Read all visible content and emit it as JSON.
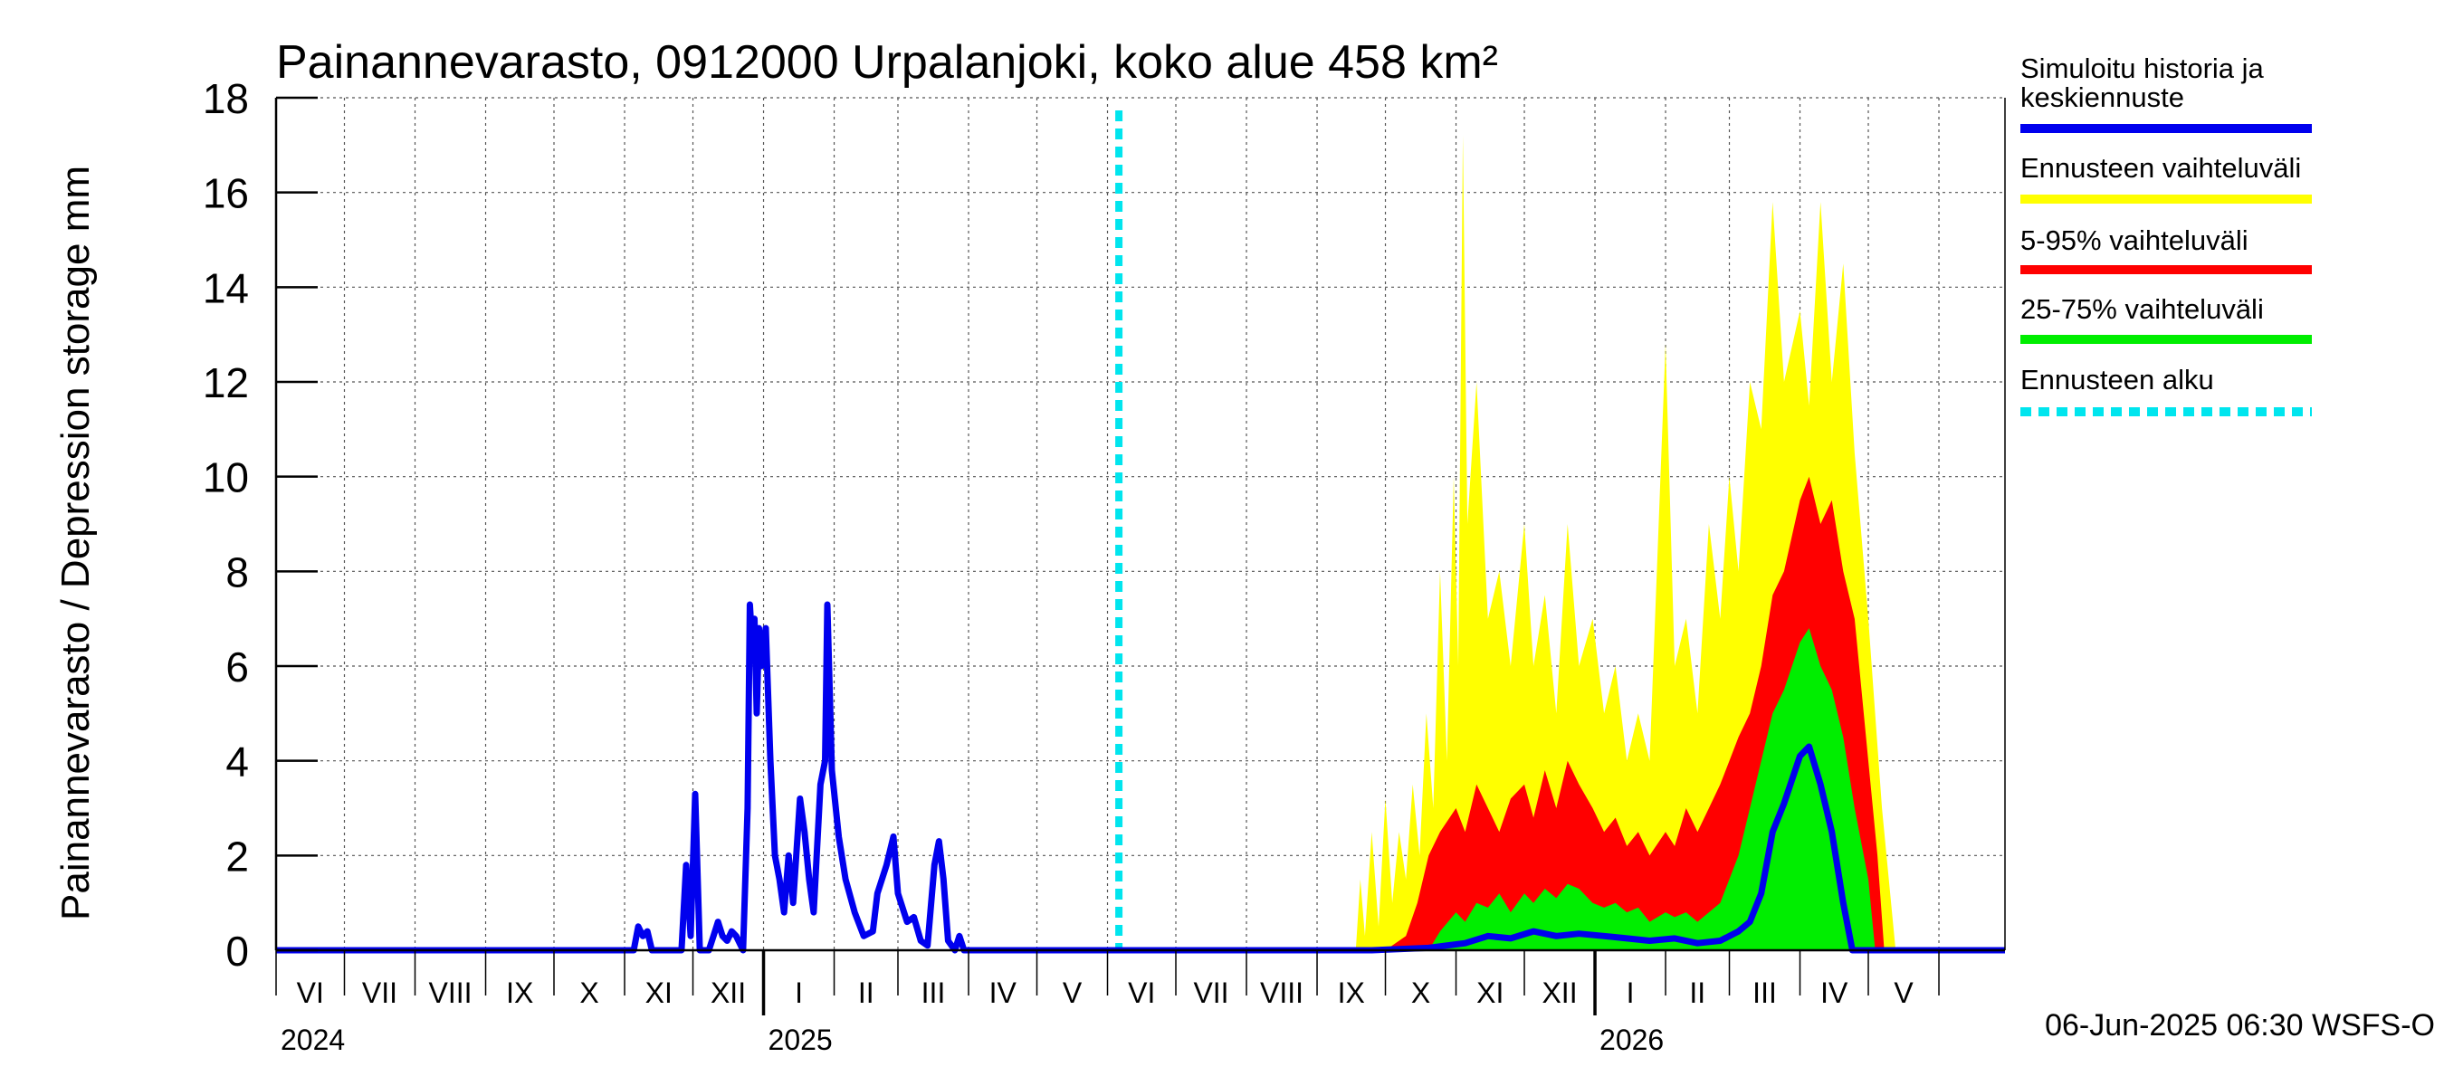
{
  "chart_data": {
    "type": "area",
    "title": "Painannevarasto, 0912000 Urpalanjoki, koko alue 458 km²",
    "ylabel": "Painannevarasto / Depression storage    mm",
    "ylim": [
      0,
      18
    ],
    "yticks": [
      0,
      2,
      4,
      6,
      8,
      10,
      12,
      14,
      16,
      18
    ],
    "grid": true,
    "legend_position": "right",
    "x_range": [
      "2024-06-01",
      "2026-06-30"
    ],
    "month_labels": [
      "VI",
      "VII",
      "VIII",
      "IX",
      "X",
      "XI",
      "XII",
      "I",
      "II",
      "III",
      "IV",
      "V",
      "VI",
      "VII",
      "VIII",
      "IX",
      "X",
      "XI",
      "XII",
      "I",
      "II",
      "III",
      "IV",
      "V"
    ],
    "year_labels": [
      {
        "label": "2024",
        "date": "2024-06-01"
      },
      {
        "label": "2025",
        "date": "2025-01-01"
      },
      {
        "label": "2026",
        "date": "2026-01-01"
      }
    ],
    "forecast_start": "2025-06-06",
    "footer": "06-Jun-2025 06:30 WSFS-O",
    "legend": [
      {
        "label": "Simuloitu historia ja keskiennuste",
        "color": "#0000ee",
        "style": "solid"
      },
      {
        "label": "Ennusteen vaihteluväli",
        "color": "#ffff00",
        "style": "solid"
      },
      {
        "label": "5-95% vaihteluväli",
        "color": "#ff0000",
        "style": "solid"
      },
      {
        "label": "25-75% vaihteluväli",
        "color": "#00ee00",
        "style": "solid"
      },
      {
        "label": "Ennusteen alku",
        "color": "#00e5ee",
        "style": "dashed"
      }
    ],
    "colors": {
      "history": "#0000ee",
      "range": "#ffff00",
      "p5_95": "#ff0000",
      "p25_75": "#00ee00",
      "forecast_start": "#00e5ee"
    },
    "series": [
      {
        "name": "Simuloitu historia ja keskiennuste",
        "points": [
          [
            "2024-06-01",
            0
          ],
          [
            "2024-11-05",
            0
          ],
          [
            "2024-11-07",
            0.5
          ],
          [
            "2024-11-09",
            0.3
          ],
          [
            "2024-11-11",
            0.4
          ],
          [
            "2024-11-13",
            0
          ],
          [
            "2024-11-26",
            0
          ],
          [
            "2024-11-28",
            1.8
          ],
          [
            "2024-11-30",
            0.3
          ],
          [
            "2024-12-02",
            3.3
          ],
          [
            "2024-12-04",
            0
          ],
          [
            "2024-12-08",
            0
          ],
          [
            "2024-12-10",
            0.3
          ],
          [
            "2024-12-12",
            0.6
          ],
          [
            "2024-12-14",
            0.3
          ],
          [
            "2024-12-16",
            0.2
          ],
          [
            "2024-12-18",
            0.4
          ],
          [
            "2024-12-20",
            0.3
          ],
          [
            "2024-12-23",
            0
          ],
          [
            "2024-12-25",
            3
          ],
          [
            "2024-12-26",
            7.3
          ],
          [
            "2024-12-27",
            6.5
          ],
          [
            "2024-12-28",
            7
          ],
          [
            "2024-12-29",
            5
          ],
          [
            "2024-12-30",
            6.8
          ],
          [
            "2024-12-31",
            6
          ],
          [
            "2025-01-02",
            6.8
          ],
          [
            "2025-01-04",
            4
          ],
          [
            "2025-01-06",
            2
          ],
          [
            "2025-01-08",
            1.5
          ],
          [
            "2025-01-10",
            0.8
          ],
          [
            "2025-01-12",
            2
          ],
          [
            "2025-01-14",
            1
          ],
          [
            "2025-01-17",
            3.2
          ],
          [
            "2025-01-19",
            2.5
          ],
          [
            "2025-01-21",
            1.5
          ],
          [
            "2025-01-23",
            0.8
          ],
          [
            "2025-01-26",
            3.5
          ],
          [
            "2025-01-28",
            4
          ],
          [
            "2025-01-29",
            7.3
          ],
          [
            "2025-01-31",
            3.8
          ],
          [
            "2025-02-03",
            2.4
          ],
          [
            "2025-02-06",
            1.5
          ],
          [
            "2025-02-10",
            0.8
          ],
          [
            "2025-02-14",
            0.3
          ],
          [
            "2025-02-18",
            0.4
          ],
          [
            "2025-02-20",
            1.2
          ],
          [
            "2025-02-24",
            1.8
          ],
          [
            "2025-02-27",
            2.4
          ],
          [
            "2025-03-01",
            1.2
          ],
          [
            "2025-03-05",
            0.6
          ],
          [
            "2025-03-08",
            0.7
          ],
          [
            "2025-03-11",
            0.2
          ],
          [
            "2025-03-14",
            0.1
          ],
          [
            "2025-03-17",
            1.8
          ],
          [
            "2025-03-19",
            2.3
          ],
          [
            "2025-03-21",
            1.5
          ],
          [
            "2025-03-23",
            0.2
          ],
          [
            "2025-03-26",
            0
          ],
          [
            "2025-03-28",
            0.3
          ],
          [
            "2025-03-30",
            0
          ],
          [
            "2025-09-25",
            0
          ],
          [
            "2025-10-20",
            0.05
          ],
          [
            "2025-11-05",
            0.15
          ],
          [
            "2025-11-15",
            0.3
          ],
          [
            "2025-11-25",
            0.25
          ],
          [
            "2025-12-05",
            0.4
          ],
          [
            "2025-12-15",
            0.3
          ],
          [
            "2025-12-25",
            0.35
          ],
          [
            "2026-01-05",
            0.3
          ],
          [
            "2026-01-15",
            0.25
          ],
          [
            "2026-01-25",
            0.2
          ],
          [
            "2026-02-05",
            0.25
          ],
          [
            "2026-02-15",
            0.15
          ],
          [
            "2026-02-25",
            0.2
          ],
          [
            "2026-03-05",
            0.4
          ],
          [
            "2026-03-10",
            0.6
          ],
          [
            "2026-03-15",
            1.2
          ],
          [
            "2026-03-20",
            2.5
          ],
          [
            "2026-03-25",
            3.1
          ],
          [
            "2026-04-01",
            4.1
          ],
          [
            "2026-04-05",
            4.3
          ],
          [
            "2026-04-10",
            3.5
          ],
          [
            "2026-04-15",
            2.5
          ],
          [
            "2026-04-20",
            1
          ],
          [
            "2026-04-24",
            0
          ],
          [
            "2026-06-30",
            0
          ]
        ]
      },
      {
        "name": "Ennusteen vaihteluväli",
        "upper": [
          [
            "2025-06-06",
            0
          ],
          [
            "2025-09-18",
            0
          ],
          [
            "2025-09-20",
            1.5
          ],
          [
            "2025-09-22",
            0.3
          ],
          [
            "2025-09-25",
            2.5
          ],
          [
            "2025-09-28",
            0.5
          ],
          [
            "2025-10-01",
            3.2
          ],
          [
            "2025-10-04",
            1
          ],
          [
            "2025-10-07",
            2.5
          ],
          [
            "2025-10-10",
            1.5
          ],
          [
            "2025-10-13",
            3.5
          ],
          [
            "2025-10-16",
            2
          ],
          [
            "2025-10-19",
            5
          ],
          [
            "2025-10-22",
            3
          ],
          [
            "2025-10-25",
            8
          ],
          [
            "2025-10-28",
            4
          ],
          [
            "2025-10-31",
            10
          ],
          [
            "2025-11-02",
            6
          ],
          [
            "2025-11-04",
            17.2
          ],
          [
            "2025-11-06",
            9
          ],
          [
            "2025-11-10",
            12
          ],
          [
            "2025-11-15",
            7
          ],
          [
            "2025-11-20",
            8
          ],
          [
            "2025-11-25",
            6
          ],
          [
            "2025-12-01",
            9
          ],
          [
            "2025-12-05",
            6
          ],
          [
            "2025-12-10",
            7.5
          ],
          [
            "2025-12-15",
            5
          ],
          [
            "2025-12-20",
            9
          ],
          [
            "2025-12-25",
            6
          ],
          [
            "2025-12-31",
            7
          ],
          [
            "2026-01-05",
            5
          ],
          [
            "2026-01-10",
            6
          ],
          [
            "2026-01-15",
            4
          ],
          [
            "2026-01-20",
            5
          ],
          [
            "2026-01-25",
            4
          ],
          [
            "2026-02-01",
            12.8
          ],
          [
            "2026-02-05",
            6
          ],
          [
            "2026-02-10",
            7
          ],
          [
            "2026-02-15",
            5
          ],
          [
            "2026-02-20",
            9
          ],
          [
            "2026-02-25",
            7
          ],
          [
            "2026-03-01",
            10
          ],
          [
            "2026-03-05",
            8
          ],
          [
            "2026-03-10",
            12
          ],
          [
            "2026-03-15",
            11
          ],
          [
            "2026-03-20",
            15.8
          ],
          [
            "2026-03-25",
            12
          ],
          [
            "2026-04-01",
            13.5
          ],
          [
            "2026-04-05",
            11.5
          ],
          [
            "2026-04-10",
            15.8
          ],
          [
            "2026-04-15",
            12
          ],
          [
            "2026-04-20",
            14.5
          ],
          [
            "2026-04-25",
            10.5
          ],
          [
            "2026-05-01",
            7
          ],
          [
            "2026-05-07",
            3
          ],
          [
            "2026-05-13",
            0
          ],
          [
            "2026-06-30",
            0
          ]
        ],
        "lower": [
          [
            "2025-06-06",
            0
          ],
          [
            "2026-06-30",
            0
          ]
        ]
      },
      {
        "name": "5-95% vaihteluväli",
        "upper": [
          [
            "2025-06-06",
            0
          ],
          [
            "2025-10-01",
            0
          ],
          [
            "2025-10-10",
            0.3
          ],
          [
            "2025-10-15",
            1
          ],
          [
            "2025-10-20",
            2
          ],
          [
            "2025-10-25",
            2.5
          ],
          [
            "2025-11-01",
            3
          ],
          [
            "2025-11-05",
            2.5
          ],
          [
            "2025-11-10",
            3.5
          ],
          [
            "2025-11-15",
            3
          ],
          [
            "2025-11-20",
            2.5
          ],
          [
            "2025-11-25",
            3.2
          ],
          [
            "2025-12-01",
            3.5
          ],
          [
            "2025-12-05",
            2.8
          ],
          [
            "2025-12-10",
            3.8
          ],
          [
            "2025-12-15",
            3
          ],
          [
            "2025-12-20",
            4
          ],
          [
            "2025-12-25",
            3.5
          ],
          [
            "2025-12-31",
            3
          ],
          [
            "2026-01-05",
            2.5
          ],
          [
            "2026-01-10",
            2.8
          ],
          [
            "2026-01-15",
            2.2
          ],
          [
            "2026-01-20",
            2.5
          ],
          [
            "2026-01-25",
            2
          ],
          [
            "2026-02-01",
            2.5
          ],
          [
            "2026-02-05",
            2.2
          ],
          [
            "2026-02-10",
            3
          ],
          [
            "2026-02-15",
            2.5
          ],
          [
            "2026-02-20",
            3
          ],
          [
            "2026-02-25",
            3.5
          ],
          [
            "2026-03-01",
            4
          ],
          [
            "2026-03-05",
            4.5
          ],
          [
            "2026-03-10",
            5
          ],
          [
            "2026-03-15",
            6
          ],
          [
            "2026-03-20",
            7.5
          ],
          [
            "2026-03-25",
            8
          ],
          [
            "2026-04-01",
            9.5
          ],
          [
            "2026-04-05",
            10
          ],
          [
            "2026-04-10",
            9
          ],
          [
            "2026-04-15",
            9.5
          ],
          [
            "2026-04-20",
            8
          ],
          [
            "2026-04-25",
            7
          ],
          [
            "2026-05-01",
            4
          ],
          [
            "2026-05-05",
            2
          ],
          [
            "2026-05-08",
            0
          ],
          [
            "2026-06-30",
            0
          ]
        ],
        "lower": [
          [
            "2025-06-06",
            0
          ],
          [
            "2026-06-30",
            0
          ]
        ]
      },
      {
        "name": "25-75% vaihteluväli",
        "upper": [
          [
            "2025-06-06",
            0
          ],
          [
            "2025-10-20",
            0
          ],
          [
            "2025-10-25",
            0.4
          ],
          [
            "2025-11-01",
            0.8
          ],
          [
            "2025-11-05",
            0.6
          ],
          [
            "2025-11-10",
            1
          ],
          [
            "2025-11-15",
            0.9
          ],
          [
            "2025-11-20",
            1.2
          ],
          [
            "2025-11-25",
            0.8
          ],
          [
            "2025-12-01",
            1.2
          ],
          [
            "2025-12-05",
            1
          ],
          [
            "2025-12-10",
            1.3
          ],
          [
            "2025-12-15",
            1.1
          ],
          [
            "2025-12-20",
            1.4
          ],
          [
            "2025-12-25",
            1.3
          ],
          [
            "2025-12-31",
            1
          ],
          [
            "2026-01-05",
            0.9
          ],
          [
            "2026-01-10",
            1
          ],
          [
            "2026-01-15",
            0.8
          ],
          [
            "2026-01-20",
            0.9
          ],
          [
            "2026-01-25",
            0.6
          ],
          [
            "2026-02-01",
            0.8
          ],
          [
            "2026-02-05",
            0.7
          ],
          [
            "2026-02-10",
            0.8
          ],
          [
            "2026-02-15",
            0.6
          ],
          [
            "2026-02-20",
            0.8
          ],
          [
            "2026-02-25",
            1
          ],
          [
            "2026-03-01",
            1.5
          ],
          [
            "2026-03-05",
            2
          ],
          [
            "2026-03-10",
            3
          ],
          [
            "2026-03-15",
            4
          ],
          [
            "2026-03-20",
            5
          ],
          [
            "2026-03-25",
            5.5
          ],
          [
            "2026-04-01",
            6.5
          ],
          [
            "2026-04-05",
            6.8
          ],
          [
            "2026-04-10",
            6
          ],
          [
            "2026-04-15",
            5.5
          ],
          [
            "2026-04-20",
            4.5
          ],
          [
            "2026-04-25",
            3
          ],
          [
            "2026-05-01",
            1.5
          ],
          [
            "2026-05-04",
            0
          ],
          [
            "2026-06-30",
            0
          ]
        ],
        "lower": [
          [
            "2025-06-06",
            0
          ],
          [
            "2026-06-30",
            0
          ]
        ]
      }
    ]
  }
}
